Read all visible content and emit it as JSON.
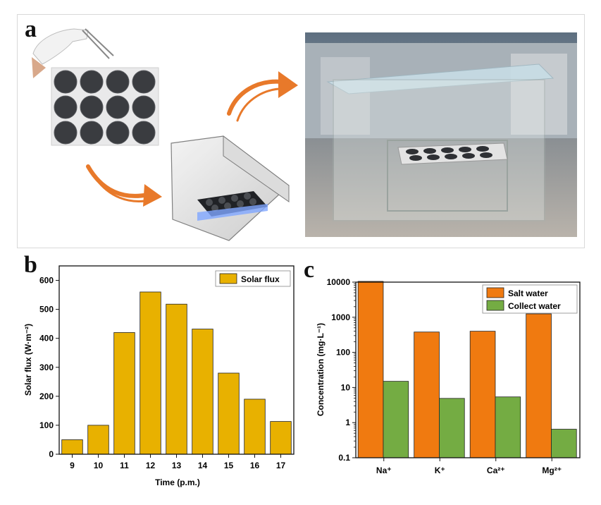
{
  "panel_labels": {
    "a": "a",
    "b": "b",
    "c": "c"
  },
  "chart_data": [
    {
      "type": "bar",
      "panel": "b",
      "categories": [
        "9",
        "10",
        "11",
        "12",
        "13",
        "14",
        "15",
        "16",
        "17"
      ],
      "series": [
        {
          "name": "Solar flux",
          "values": [
            50,
            100,
            420,
            560,
            518,
            432,
            280,
            190,
            113
          ],
          "color": "#e8b100"
        }
      ],
      "xlabel": "Time (p.m.)",
      "ylabel": "Solar flux (W·m⁻²)",
      "ylim": [
        0,
        650
      ],
      "yticks": [
        "0",
        "100",
        "200",
        "300",
        "400",
        "500",
        "600"
      ],
      "legend": "top-right",
      "grid": false
    },
    {
      "type": "bar",
      "panel": "c",
      "scale": "log",
      "categories": [
        "Na⁺",
        "K⁺",
        "Ca²⁺",
        "Mg²⁺"
      ],
      "series": [
        {
          "name": "Salt water",
          "values": [
            10500,
            380,
            400,
            1250
          ],
          "color": "#f07a10"
        },
        {
          "name": "Collect water",
          "values": [
            15,
            4.9,
            5.4,
            0.65
          ],
          "color": "#74ac43"
        }
      ],
      "ylabel": "Concentration (mg·L⁻¹)",
      "ylim": [
        0.1,
        10000
      ],
      "yticks": [
        "0.1",
        "1",
        "10",
        "100",
        "1000",
        "10000"
      ],
      "legend": "top-right",
      "grid": false
    }
  ]
}
